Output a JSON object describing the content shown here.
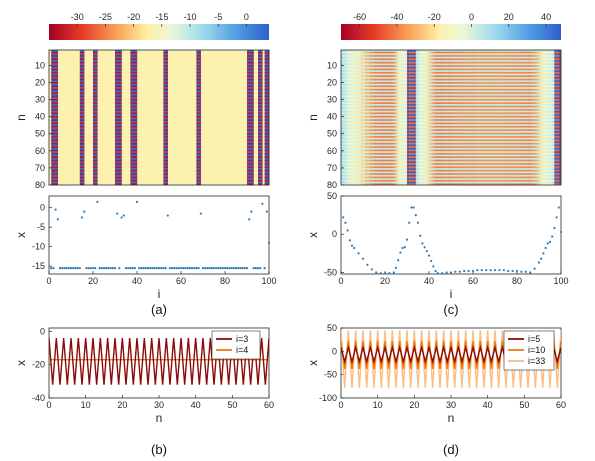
{
  "panel_labels": {
    "a": "(a)",
    "b": "(b)",
    "c": "(c)",
    "d": "(d)"
  },
  "colorbar_left": {
    "ticks": [
      "-30",
      "-25",
      "-20",
      "-15",
      "-10",
      "-5",
      "0"
    ]
  },
  "colorbar_right": {
    "ticks": [
      "-60",
      "-40",
      "-20",
      "0",
      "20",
      "40"
    ]
  },
  "chart_data": [
    {
      "id": "a_top",
      "type": "heatmap",
      "xlabel": "",
      "ylabel": "n",
      "yticks": [
        "10",
        "20",
        "30",
        "40",
        "50",
        "60",
        "70",
        "80"
      ],
      "ylim": [
        1,
        80
      ],
      "colorbar_range": [
        -35,
        4
      ],
      "background_value": -17,
      "oscillating_columns": [
        2,
        3,
        4,
        15,
        16,
        21,
        22,
        31,
        32,
        33,
        38,
        39,
        40,
        53,
        54,
        68,
        69,
        91,
        92,
        93,
        96,
        97,
        99,
        100
      ],
      "oscillation_low": -33,
      "oscillation_high": 3
    },
    {
      "id": "a_bottom",
      "type": "scatter",
      "xlabel": "i",
      "ylabel": "x",
      "xticks": [
        "0",
        "20",
        "40",
        "60",
        "80",
        "100"
      ],
      "yticks": [
        "0",
        "-5",
        "-10",
        "-15"
      ],
      "xlim": [
        0,
        100
      ],
      "ylim": [
        -17,
        3
      ],
      "baseline_value": -15.5,
      "outliers": [
        [
          3,
          -0.5
        ],
        [
          4,
          -3
        ],
        [
          15,
          -2.5
        ],
        [
          16,
          -1
        ],
        [
          22,
          1.5
        ],
        [
          31,
          -1.5
        ],
        [
          33,
          -2.5
        ],
        [
          34,
          -2
        ],
        [
          40,
          1.5
        ],
        [
          54,
          -2
        ],
        [
          69,
          -1.5
        ],
        [
          91,
          -3
        ],
        [
          92,
          -1
        ],
        [
          97,
          1
        ],
        [
          99,
          -1
        ],
        [
          100,
          -9
        ]
      ]
    },
    {
      "id": "b",
      "type": "line",
      "xlabel": "n",
      "ylabel": "x",
      "xticks": [
        "0",
        "10",
        "20",
        "30",
        "40",
        "50",
        "60"
      ],
      "yticks": [
        "0",
        "-20",
        "-40"
      ],
      "xlim": [
        0,
        60
      ],
      "ylim": [
        -40,
        2
      ],
      "series": [
        {
          "name": "i=3",
          "color": "#8b0a0a",
          "pattern": "period-2",
          "high": -4,
          "low": -32
        },
        {
          "name": "i=4",
          "color": "#f07a10",
          "pattern": "constant",
          "value": -17
        }
      ]
    },
    {
      "id": "c_top",
      "type": "heatmap",
      "xlabel": "",
      "ylabel": "n",
      "yticks": [
        "10",
        "20",
        "30",
        "40",
        "50",
        "60",
        "70",
        "80"
      ],
      "ylim": [
        1,
        80
      ],
      "colorbar_range": [
        -70,
        48
      ],
      "oscillating_columns_strong": [
        31,
        32,
        33,
        34,
        98,
        99,
        100
      ],
      "note_values": "all columns oscillate in n with period 2; amplitude grows away from bright bands"
    },
    {
      "id": "c_bottom",
      "type": "scatter",
      "xlabel": "i",
      "ylabel": "x",
      "xticks": [
        "0",
        "20",
        "40",
        "60",
        "80",
        "100"
      ],
      "yticks": [
        "50",
        "0",
        "-50"
      ],
      "xlim": [
        0,
        100
      ],
      "ylim": [
        -52,
        50
      ],
      "points": [
        [
          1,
          22
        ],
        [
          2,
          15
        ],
        [
          3,
          5
        ],
        [
          4,
          -8
        ],
        [
          5,
          -15
        ],
        [
          6,
          -18
        ],
        [
          8,
          -25
        ],
        [
          10,
          -32
        ],
        [
          12,
          -40
        ],
        [
          14,
          -46
        ],
        [
          16,
          -50
        ],
        [
          18,
          -51
        ],
        [
          20,
          -51
        ],
        [
          22,
          -51
        ],
        [
          24,
          -50
        ],
        [
          25,
          -44
        ],
        [
          26,
          -34
        ],
        [
          27,
          -24
        ],
        [
          28,
          -18
        ],
        [
          29,
          -17
        ],
        [
          30,
          -7
        ],
        [
          31,
          15
        ],
        [
          32,
          35
        ],
        [
          33,
          35
        ],
        [
          34,
          25
        ],
        [
          35,
          15
        ],
        [
          36,
          -2
        ],
        [
          37,
          -12
        ],
        [
          38,
          -17
        ],
        [
          39,
          -22
        ],
        [
          40,
          -28
        ],
        [
          41,
          -35
        ],
        [
          42,
          -42
        ],
        [
          43,
          -48
        ],
        [
          44,
          -51
        ],
        [
          46,
          -51
        ],
        [
          48,
          -50
        ],
        [
          50,
          -50
        ],
        [
          52,
          -49
        ],
        [
          54,
          -49
        ],
        [
          56,
          -48
        ],
        [
          58,
          -48
        ],
        [
          60,
          -48
        ],
        [
          62,
          -47
        ],
        [
          64,
          -47
        ],
        [
          66,
          -47
        ],
        [
          68,
          -47
        ],
        [
          70,
          -47
        ],
        [
          72,
          -47
        ],
        [
          74,
          -47
        ],
        [
          76,
          -48
        ],
        [
          78,
          -48
        ],
        [
          80,
          -48
        ],
        [
          82,
          -49
        ],
        [
          84,
          -49
        ],
        [
          86,
          -50
        ],
        [
          88,
          -45
        ],
        [
          90,
          -37
        ],
        [
          91,
          -32
        ],
        [
          92,
          -25
        ],
        [
          93,
          -18
        ],
        [
          94,
          -12
        ],
        [
          95,
          -10
        ],
        [
          96,
          -3
        ],
        [
          97,
          8
        ],
        [
          98,
          22
        ],
        [
          99,
          35
        ],
        [
          100,
          3
        ]
      ]
    },
    {
      "id": "d",
      "type": "line",
      "xlabel": "n",
      "ylabel": "x",
      "xticks": [
        "0",
        "10",
        "20",
        "30",
        "40",
        "50",
        "60"
      ],
      "yticks": [
        "50",
        "0",
        "-50",
        "-100"
      ],
      "xlim": [
        0,
        60
      ],
      "ylim": [
        -100,
        50
      ],
      "series": [
        {
          "name": "i=5",
          "color": "#8b0a0a",
          "pattern": "period-2",
          "high": 8,
          "low": -22
        },
        {
          "name": "i=10",
          "color": "#f07a10",
          "pattern": "period-2",
          "high": 22,
          "low": -38
        },
        {
          "name": "i=33",
          "color": "#f8be82",
          "pattern": "period-2",
          "high": 45,
          "low": -78
        }
      ]
    }
  ]
}
